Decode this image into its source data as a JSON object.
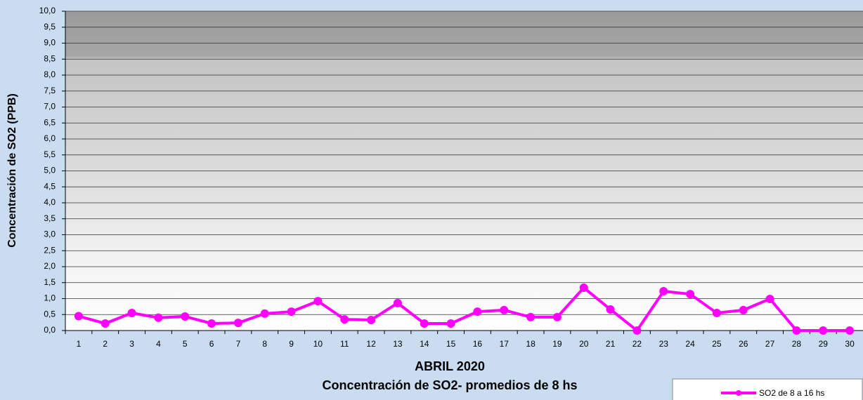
{
  "chart_data": {
    "type": "line",
    "y_label": "Concentración de SO2  (PPB)",
    "x_label": "ABRIL 2020",
    "title": "Concentración de SO2- promedios de 8 hs",
    "categories": [
      "1",
      "2",
      "3",
      "4",
      "5",
      "6",
      "7",
      "8",
      "9",
      "10",
      "11",
      "12",
      "13",
      "14",
      "15",
      "16",
      "17",
      "18",
      "19",
      "20",
      "21",
      "22",
      "23",
      "24",
      "25",
      "26",
      "27",
      "28",
      "29",
      "30"
    ],
    "series": [
      {
        "name": "SO2 de 8 a 16 hs",
        "color": "#ff00ff",
        "values": [
          0.45,
          0.22,
          0.55,
          0.4,
          0.44,
          0.22,
          0.24,
          0.53,
          0.59,
          0.92,
          0.35,
          0.33,
          0.86,
          0.22,
          0.22,
          0.59,
          0.64,
          0.42,
          0.42,
          1.34,
          0.66,
          0,
          1.23,
          1.14,
          0.55,
          0.64,
          0.99,
          0,
          0,
          0
        ]
      }
    ],
    "ylim": [
      0,
      10
    ],
    "yticks": [
      {
        "value": 0,
        "label": "0,0"
      },
      {
        "value": 0.5,
        "label": "0,5"
      },
      {
        "value": 1,
        "label": "1,0"
      },
      {
        "value": 1.5,
        "label": "1,5"
      },
      {
        "value": 2,
        "label": "2,0"
      },
      {
        "value": 2.5,
        "label": "2,5"
      },
      {
        "value": 3,
        "label": "3,0"
      },
      {
        "value": 3.5,
        "label": "3,5"
      },
      {
        "value": 4,
        "label": "4,0"
      },
      {
        "value": 4.5,
        "label": "4,5"
      },
      {
        "value": 5,
        "label": "5,0"
      },
      {
        "value": 5.5,
        "label": "5,5"
      },
      {
        "value": 6,
        "label": "6,0"
      },
      {
        "value": 6.5,
        "label": "6,5"
      },
      {
        "value": 7,
        "label": "7,0"
      },
      {
        "value": 7.5,
        "label": "7,5"
      },
      {
        "value": 8,
        "label": "8,0"
      },
      {
        "value": 8.5,
        "label": "8,5"
      },
      {
        "value": 9,
        "label": "9,0"
      },
      {
        "value": 9.5,
        "label": "9,5"
      },
      {
        "value": 10,
        "label": "10,0"
      }
    ],
    "grid": true
  }
}
